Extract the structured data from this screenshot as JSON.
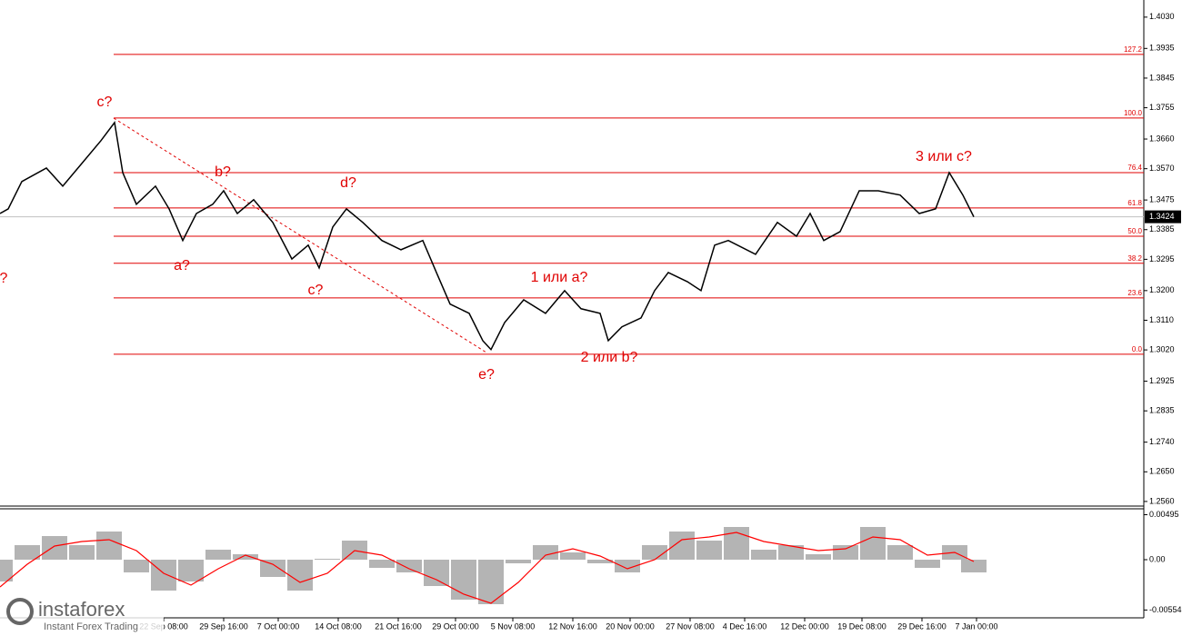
{
  "chart_data": [
    {
      "type": "line",
      "color": "#000000",
      "xlim": [
        0,
        420
      ],
      "ylim": [
        1.2546,
        1.4082
      ],
      "x": [
        0,
        3,
        8,
        17,
        23,
        30,
        37,
        42,
        45,
        50,
        57,
        62,
        67,
        72,
        78,
        82,
        87,
        93,
        100,
        107,
        113,
        117,
        122,
        127,
        133,
        140,
        147,
        155,
        160,
        165,
        172,
        177,
        180,
        185,
        192,
        200,
        207,
        213,
        220,
        223,
        228,
        235,
        240,
        245,
        252,
        257,
        262,
        267,
        277,
        285,
        292,
        297,
        302,
        308,
        315,
        322,
        330,
        337,
        343,
        348,
        353,
        357
      ],
      "values": [
        1.3434,
        1.3448,
        1.3531,
        1.3572,
        1.3517,
        1.3586,
        1.3655,
        1.371,
        1.3558,
        1.3462,
        1.3517,
        1.3448,
        1.3352,
        1.3434,
        1.3462,
        1.3503,
        1.3434,
        1.3476,
        1.3407,
        1.3296,
        1.3338,
        1.3269,
        1.3393,
        1.3448,
        1.3407,
        1.3352,
        1.3324,
        1.3352,
        1.3255,
        1.3159,
        1.3131,
        1.3048,
        1.3021,
        1.3103,
        1.3172,
        1.3131,
        1.32,
        1.3145,
        1.3131,
        1.3048,
        1.309,
        1.3117,
        1.32,
        1.3255,
        1.3227,
        1.32,
        1.3338,
        1.3352,
        1.331,
        1.3407,
        1.3365,
        1.3434,
        1.3352,
        1.3379,
        1.3503,
        1.3503,
        1.349,
        1.3434,
        1.3448,
        1.3558,
        1.349,
        1.3424
      ],
      "yticks": [
        {
          "value": 1.403,
          "label": "1.4030"
        },
        {
          "value": 1.3935,
          "label": "1.3935"
        },
        {
          "value": 1.3845,
          "label": "1.3845"
        },
        {
          "value": 1.3755,
          "label": "1.3755"
        },
        {
          "value": 1.366,
          "label": "1.3660"
        },
        {
          "value": 1.357,
          "label": "1.3570"
        },
        {
          "value": 1.3475,
          "label": "1.3475"
        },
        {
          "value": 1.3385,
          "label": "1.3385"
        },
        {
          "value": 1.3295,
          "label": "1.3295"
        },
        {
          "value": 1.32,
          "label": "1.3200"
        },
        {
          "value": 1.311,
          "label": "1.3110"
        },
        {
          "value": 1.302,
          "label": "1.3020"
        },
        {
          "value": 1.2925,
          "label": "1.2925"
        },
        {
          "value": 1.2835,
          "label": "1.2835"
        },
        {
          "value": 1.274,
          "label": "1.2740"
        },
        {
          "value": 1.265,
          "label": "1.2650"
        },
        {
          "value": 1.256,
          "label": "1.2560"
        }
      ],
      "last_price": {
        "value": 1.3424,
        "label": "1.3424"
      },
      "levels": [
        {
          "label": "127.2",
          "value": 1.3917
        },
        {
          "label": "100.0",
          "value": 1.3724
        },
        {
          "label": "76.4",
          "value": 1.3558
        },
        {
          "label": "61.8",
          "value": 1.3451
        },
        {
          "label": "50.0",
          "value": 1.3365
        },
        {
          "label": "38.2",
          "value": 1.3283
        },
        {
          "label": "23.6",
          "value": 1.3178
        },
        {
          "label": "0.0",
          "value": 1.3007
        }
      ],
      "annotations": [
        "c?",
        "b?",
        "a?",
        "d?",
        "c?",
        "e?",
        "1 или a?",
        "2 или b?",
        "3 или c?",
        "?"
      ]
    },
    {
      "type": "bar",
      "color": "#b4b4b4",
      "xlim": [
        0,
        420
      ],
      "ylim": [
        -0.0064,
        0.0056
      ],
      "x": [
        0,
        10,
        20,
        30,
        40,
        50,
        60,
        70,
        80,
        90,
        100,
        110,
        120,
        130,
        140,
        150,
        160,
        170,
        180,
        190,
        200,
        210,
        220,
        230,
        240,
        250,
        260,
        270,
        280,
        290,
        300,
        310,
        320,
        330,
        340,
        350,
        357
      ],
      "values": [
        -0.0024,
        0.0016,
        0.0026,
        0.0016,
        0.0031,
        -0.0014,
        -0.0034,
        -0.0024,
        0.0011,
        0.0006,
        -0.0019,
        -0.0034,
        0.0001,
        0.0021,
        -0.0009,
        -0.0014,
        -0.0029,
        -0.0044,
        -0.0049,
        -0.0004,
        0.0016,
        0.0008,
        -0.0004,
        -0.0014,
        0.0016,
        0.0031,
        0.0021,
        0.0036,
        0.0011,
        0.0016,
        0.0006,
        0.0016,
        0.0036,
        0.0016,
        -0.0009,
        0.0016,
        -0.0014
      ],
      "signal": {
        "color": "#ff0000",
        "values": [
          -0.003,
          -0.0005,
          0.0015,
          0.002,
          0.0022,
          0.001,
          -0.0015,
          -0.0028,
          -0.001,
          0.0005,
          -0.0005,
          -0.0025,
          -0.0015,
          0.001,
          0.0005,
          -0.001,
          -0.0022,
          -0.0038,
          -0.0048,
          -0.0025,
          0.0005,
          0.0012,
          0.0004,
          -0.001,
          0,
          0.0022,
          0.0025,
          0.003,
          0.002,
          0.0015,
          0.001,
          0.0012,
          0.0025,
          0.0022,
          0.0005,
          0.0008,
          -0.0002
        ]
      },
      "yticks": [
        0.00495,
        {
          "value": 0,
          "label": "0.00"
        },
        -0.00554
      ],
      "xticks": [
        {
          "value": 60,
          "label": "22 Sep 08:00"
        },
        {
          "value": 82,
          "label": "29 Sep 16:00"
        },
        {
          "value": 102,
          "label": "7 Oct 00:00"
        },
        {
          "value": 124,
          "label": "14 Oct 08:00"
        },
        {
          "value": 146,
          "label": "21 Oct 16:00"
        },
        {
          "value": 167,
          "label": "29 Oct 00:00"
        },
        {
          "value": 188,
          "label": "5 Nov 08:00"
        },
        {
          "value": 210,
          "label": "12 Nov 16:00"
        },
        {
          "value": 231,
          "label": "20 Nov 00:00"
        },
        {
          "value": 253,
          "label": "27 Nov 08:00"
        },
        {
          "value": 273,
          "label": "4 Dec 16:00"
        },
        {
          "value": 295,
          "label": "12 Dec 00:00"
        },
        {
          "value": 316,
          "label": "19 Dec 08:00"
        },
        {
          "value": 338,
          "label": "29 Dec 16:00"
        },
        {
          "value": 358,
          "label": "7 Jan 00:00"
        }
      ]
    }
  ],
  "branding": {
    "name": "instaforex",
    "tagline": "Instant Forex Trading"
  }
}
